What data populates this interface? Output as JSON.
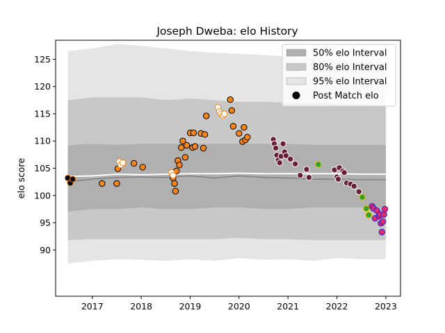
{
  "chart_data": {
    "type": "scatter",
    "title": "Joseph Dweba: elo History",
    "xlabel": "",
    "ylabel": "elo score",
    "xlim": [
      2016.25,
      2023.3
    ],
    "ylim": [
      81.5,
      128.5
    ],
    "xticks": [
      2017,
      2018,
      2019,
      2020,
      2021,
      2022,
      2023
    ],
    "xtick_labels": [
      "2017",
      "2018",
      "2019",
      "2020",
      "2021",
      "2022",
      "2023"
    ],
    "yticks": [
      90,
      95,
      100,
      105,
      110,
      115,
      120,
      125
    ],
    "ytick_labels": [
      "90",
      "95",
      "100",
      "105",
      "110",
      "115",
      "120",
      "125"
    ],
    "grid": false,
    "legend_position": "top-right",
    "colors": {
      "band_95": "#e5e5e5",
      "band_80": "#c8c8c8",
      "band_50": "#b0b0b0",
      "median_line": "#ffffff",
      "mean_line": "#808080",
      "orange": "#f58518",
      "dark_red": "#6b1f34",
      "green": "#33a02c",
      "blue_edge": "#2020dd",
      "magenta": "#dd2c6f"
    },
    "legend": [
      {
        "label": "50% elo Interval",
        "kind": "band",
        "color": "#b0b0b0"
      },
      {
        "label": "80% elo Interval",
        "kind": "band",
        "color": "#c8c8c8"
      },
      {
        "label": "95% elo Interval",
        "kind": "band",
        "color": "#e5e5e5"
      },
      {
        "label": "Post Match elo",
        "kind": "marker",
        "color": "#000000"
      }
    ],
    "bands": {
      "x": [
        2016.5,
        2017.0,
        2017.5,
        2018.0,
        2018.5,
        2019.0,
        2019.5,
        2020.0,
        2020.5,
        2021.0,
        2021.5,
        2022.0,
        2022.5,
        2023.0
      ],
      "p95_upper": [
        126.5,
        127.0,
        127.8,
        127.5,
        127.0,
        126.5,
        126.2,
        126.0,
        125.8,
        125.5,
        125.2,
        125.0,
        124.5,
        124.2
      ],
      "p95_lower": [
        87.5,
        88.0,
        88.3,
        88.2,
        88.0,
        88.3,
        88.0,
        88.5,
        88.2,
        88.3,
        88.0,
        88.5,
        88.3,
        88.3
      ],
      "p80_upper": [
        117.5,
        118.0,
        118.0,
        118.0,
        117.5,
        117.8,
        117.5,
        117.2,
        117.2,
        117.0,
        117.0,
        116.8,
        116.8,
        116.5
      ],
      "p80_lower": [
        91.8,
        92.0,
        92.0,
        92.0,
        92.0,
        92.0,
        92.0,
        92.2,
        92.0,
        92.0,
        91.8,
        91.8,
        91.8,
        91.8
      ],
      "p50_upper": [
        109.2,
        109.5,
        109.3,
        109.5,
        109.5,
        109.5,
        109.5,
        109.5,
        109.5,
        109.5,
        109.3,
        109.3,
        109.3,
        109.3
      ],
      "p50_lower": [
        97.0,
        97.5,
        97.5,
        97.8,
        97.5,
        97.5,
        97.8,
        97.8,
        97.5,
        97.5,
        97.8,
        97.8,
        97.8,
        97.8
      ],
      "median": [
        103.5,
        103.6,
        103.9,
        103.8,
        103.9,
        104.0,
        104.0,
        104.1,
        104.0,
        104.0,
        104.0,
        104.0,
        103.9,
        103.9
      ],
      "mean": [
        102.5,
        103.0,
        103.3,
        103.4,
        103.3,
        103.6,
        103.2,
        103.6,
        103.3,
        103.2,
        103.0,
        103.0,
        102.9,
        102.9
      ]
    },
    "series": [
      {
        "face": "#000000",
        "edge": "#f58518",
        "points": [
          [
            2016.5,
            103.2
          ],
          [
            2016.55,
            102.3
          ],
          [
            2016.6,
            103.0
          ]
        ]
      },
      {
        "face": "#f58518",
        "edge": "#000000",
        "points": [
          [
            2017.2,
            102.2
          ],
          [
            2017.5,
            102.2
          ],
          [
            2017.52,
            104.9
          ],
          [
            2017.85,
            105.9
          ],
          [
            2018.03,
            105.2
          ],
          [
            2018.65,
            103.2
          ],
          [
            2018.68,
            102.2
          ],
          [
            2018.7,
            100.8
          ],
          [
            2018.72,
            104.5
          ],
          [
            2018.75,
            106.4
          ],
          [
            2018.78,
            105.6
          ],
          [
            2018.82,
            108.8
          ],
          [
            2018.85,
            110.0
          ],
          [
            2018.9,
            107.0
          ],
          [
            2018.93,
            109.2
          ],
          [
            2019.0,
            111.5
          ],
          [
            2019.05,
            108.8
          ],
          [
            2019.07,
            111.5
          ],
          [
            2019.1,
            109.0
          ],
          [
            2019.22,
            111.4
          ],
          [
            2019.27,
            108.7
          ],
          [
            2019.3,
            111.2
          ],
          [
            2019.33,
            114.6
          ],
          [
            2019.82,
            117.6
          ],
          [
            2019.85,
            115.6
          ],
          [
            2019.88,
            112.7
          ],
          [
            2020.0,
            111.4
          ],
          [
            2020.07,
            109.9
          ],
          [
            2020.1,
            112.5
          ],
          [
            2020.13,
            110.2
          ],
          [
            2020.17,
            110.7
          ]
        ]
      },
      {
        "face": "#ffffff",
        "edge": "#f58518",
        "points": [
          [
            2017.55,
            106.2
          ],
          [
            2017.58,
            105.6
          ],
          [
            2017.62,
            106.0
          ],
          [
            2018.62,
            104.2
          ],
          [
            2018.65,
            103.7
          ],
          [
            2019.57,
            116.2
          ],
          [
            2019.6,
            115.4
          ],
          [
            2019.63,
            115.0
          ],
          [
            2019.67,
            114.7
          ],
          [
            2019.7,
            115.0
          ]
        ]
      },
      {
        "face": "#6b1f34",
        "edge": "#ffffff",
        "points": [
          [
            2020.7,
            110.3
          ],
          [
            2020.72,
            109.5
          ],
          [
            2020.75,
            108.7
          ],
          [
            2020.77,
            107.4
          ],
          [
            2020.8,
            106.5
          ],
          [
            2020.83,
            106.0
          ],
          [
            2020.86,
            107.2
          ],
          [
            2020.9,
            109.5
          ],
          [
            2020.93,
            108.0
          ],
          [
            2020.96,
            107.3
          ],
          [
            2021.05,
            106.7
          ],
          [
            2021.15,
            105.8
          ],
          [
            2021.25,
            103.7
          ],
          [
            2021.38,
            104.8
          ],
          [
            2021.43,
            103.3
          ],
          [
            2021.95,
            104.7
          ],
          [
            2022.0,
            103.4
          ],
          [
            2022.03,
            103.0
          ],
          [
            2022.05,
            105.1
          ],
          [
            2022.12,
            104.5
          ],
          [
            2022.15,
            104.2
          ],
          [
            2022.2,
            102.3
          ],
          [
            2022.28,
            102.1
          ],
          [
            2022.35,
            101.7
          ],
          [
            2022.45,
            100.7
          ]
        ]
      },
      {
        "face": "#33a02c",
        "edge": "#e8c800",
        "points": [
          [
            2021.62,
            105.7
          ],
          [
            2022.52,
            99.7
          ],
          [
            2022.6,
            97.6
          ],
          [
            2022.65,
            96.4
          ]
        ]
      },
      {
        "face": "#dd2c6f",
        "edge": "#2020dd",
        "points": [
          [
            2022.72,
            98.0
          ],
          [
            2022.75,
            97.6
          ],
          [
            2022.78,
            95.8
          ],
          [
            2022.82,
            97.2
          ],
          [
            2022.86,
            96.2
          ],
          [
            2022.88,
            96.5
          ],
          [
            2022.9,
            94.9
          ],
          [
            2022.92,
            93.3
          ],
          [
            2022.94,
            95.2
          ],
          [
            2022.96,
            96.5
          ],
          [
            2022.98,
            97.5
          ]
        ]
      }
    ]
  }
}
